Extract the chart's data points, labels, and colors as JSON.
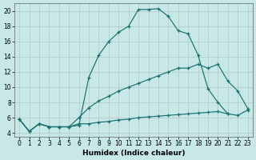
{
  "xlabel": "Humidex (Indice chaleur)",
  "bg_color": "#c8e8e8",
  "line_color": "#1a7070",
  "xlim": [
    -0.5,
    23.5
  ],
  "ylim": [
    3.5,
    21
  ],
  "xticks": [
    0,
    1,
    2,
    3,
    4,
    5,
    6,
    7,
    8,
    9,
    10,
    11,
    12,
    13,
    14,
    15,
    16,
    17,
    18,
    19,
    20,
    21,
    22,
    23
  ],
  "yticks": [
    4,
    6,
    8,
    10,
    12,
    14,
    16,
    18,
    20
  ],
  "curve_main_x": [
    0,
    1,
    2,
    3,
    4,
    5,
    6,
    7,
    8,
    9,
    10,
    11,
    12,
    13,
    14,
    15,
    16,
    17,
    18,
    19,
    20,
    21,
    22
  ],
  "curve_main_y": [
    5.8,
    4.2,
    5.2,
    4.8,
    4.8,
    4.8,
    5.0,
    11.3,
    14.2,
    16.0,
    17.2,
    18.0,
    20.2,
    20.2,
    20.3,
    19.3,
    17.4,
    17.0,
    14.2,
    9.8,
    8.0,
    6.5,
    null
  ],
  "curve_diag1_x": [
    0,
    1,
    2,
    3,
    4,
    5,
    6,
    7,
    8,
    9,
    10,
    11,
    12,
    13,
    14,
    15,
    16,
    17,
    18,
    19,
    20,
    21,
    22,
    23
  ],
  "curve_diag1_y": [
    5.8,
    4.2,
    5.2,
    4.8,
    4.8,
    4.8,
    6.0,
    7.3,
    8.2,
    8.8,
    9.5,
    10.0,
    10.5,
    11.0,
    11.5,
    12.0,
    12.5,
    12.5,
    13.0,
    12.5,
    13.0,
    10.8,
    9.5,
    7.2
  ],
  "curve_flat_x": [
    0,
    1,
    2,
    3,
    4,
    5,
    6,
    7,
    8,
    9,
    10,
    11,
    12,
    13,
    14,
    15,
    16,
    17,
    18,
    19,
    20,
    21,
    22,
    23
  ],
  "curve_flat_y": [
    5.8,
    4.2,
    5.2,
    4.8,
    4.8,
    4.8,
    5.2,
    5.2,
    5.4,
    5.5,
    5.7,
    5.8,
    6.0,
    6.1,
    6.2,
    6.3,
    6.4,
    6.5,
    6.6,
    6.7,
    6.8,
    6.5,
    6.3,
    7.0
  ]
}
